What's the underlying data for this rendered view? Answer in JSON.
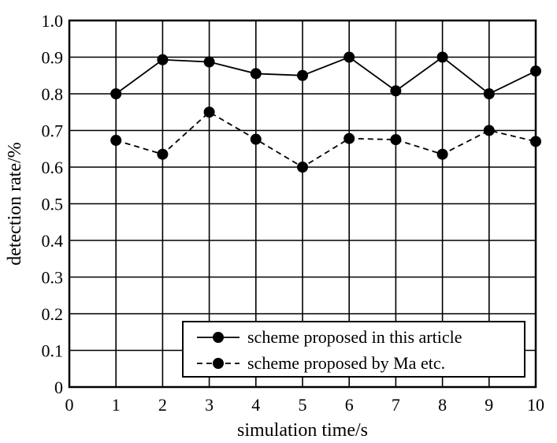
{
  "chart_data": {
    "type": "line",
    "xlabel": "simulation time/s",
    "ylabel": "detection rate/%",
    "xlim": [
      0,
      10
    ],
    "ylim": [
      0,
      1.0
    ],
    "x_ticks": [
      "0",
      "1",
      "2",
      "3",
      "4",
      "5",
      "6",
      "7",
      "8",
      "9",
      "10"
    ],
    "y_ticks": [
      "0",
      "0.1",
      "0.2",
      "0.3",
      "0.4",
      "0.5",
      "0.6",
      "0.7",
      "0.8",
      "0.9",
      "1.0"
    ],
    "grid": true,
    "legend_position": "bottom-right",
    "series": [
      {
        "name": "scheme proposed in this article",
        "line_style": "solid",
        "marker": "filled-circle",
        "color": "#000000",
        "x": [
          1,
          2,
          3,
          4,
          5,
          6,
          7,
          8,
          9,
          10
        ],
        "values": [
          0.8,
          0.893,
          0.887,
          0.855,
          0.85,
          0.9,
          0.808,
          0.9,
          0.8,
          0.862
        ]
      },
      {
        "name": "scheme proposed by Ma etc.",
        "line_style": "dashed",
        "marker": "filled-circle",
        "color": "#000000",
        "x": [
          1,
          2,
          3,
          4,
          5,
          6,
          7,
          8,
          9,
          10
        ],
        "values": [
          0.673,
          0.635,
          0.75,
          0.676,
          0.6,
          0.678,
          0.675,
          0.635,
          0.7,
          0.67
        ]
      }
    ]
  }
}
